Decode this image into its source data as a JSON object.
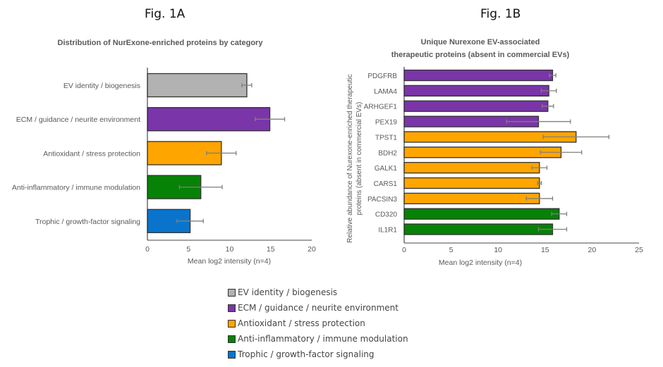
{
  "figures": {
    "fig_a_label": "Fig. 1A",
    "fig_b_label": "Fig. 1B"
  },
  "legend": [
    {
      "label": "EV identity / biogenesis",
      "color": "#b2b2b2"
    },
    {
      "label": "ECM / guidance / neurite environment",
      "color": "#7a35a8"
    },
    {
      "label": "Antioxidant / stress protection",
      "color": "#ffa500"
    },
    {
      "label": "Anti-inflammatory / immune modulation",
      "color": "#068206"
    },
    {
      "label": "Trophic / growth-factor signaling",
      "color": "#0a74cc"
    }
  ],
  "chart_data": [
    {
      "type": "bar",
      "orientation": "horizontal",
      "title": "Distribution of NurExone-enriched proteins by category",
      "xlabel": "Mean log2 intensity (n=4)",
      "ylabel": "",
      "xlim": [
        0,
        20
      ],
      "xticks": [
        0,
        5,
        10,
        15,
        20
      ],
      "grid": false,
      "categories": [
        "EV identity / biogenesis",
        "ECM / guidance / neurite environment",
        "Antioxidant / stress protection",
        "Anti-inflammatory / immune modulation",
        "Trophic / growth-factor signaling"
      ],
      "values": [
        12.1,
        14.9,
        9.0,
        6.5,
        5.2
      ],
      "errors": [
        0.6,
        1.8,
        1.8,
        2.6,
        1.6
      ],
      "colors": [
        "#b2b2b2",
        "#7a35a8",
        "#ffa500",
        "#068206",
        "#0a74cc"
      ]
    },
    {
      "type": "bar",
      "orientation": "horizontal",
      "title_lines": [
        "Unique Nurexone EV-associated",
        "therapeutic proteins (absent in commercial EVs)"
      ],
      "xlabel": "Mean log2 intensity (n=4)",
      "ylabel_lines": [
        "Relative abundance of Nurexone-enriched therapeutic",
        "proteins (absent in commercial EVs)"
      ],
      "xlim": [
        0,
        25
      ],
      "xticks": [
        0,
        5,
        10,
        15,
        20,
        25
      ],
      "grid": false,
      "categories": [
        "PDGFRB",
        "LAMA4",
        "ARHGEF1",
        "PEX19",
        "TPST1",
        "BDH2",
        "GALK1",
        "CARS1",
        "PACSIN3",
        "CD320",
        "IL1R1"
      ],
      "values": [
        15.8,
        15.4,
        15.3,
        14.3,
        18.3,
        16.7,
        14.4,
        14.4,
        14.4,
        16.5,
        15.8
      ],
      "errors": [
        0.35,
        0.8,
        0.6,
        3.4,
        3.5,
        2.2,
        0.8,
        0.2,
        1.4,
        0.8,
        1.5
      ],
      "colors": [
        "#7a35a8",
        "#7a35a8",
        "#7a35a8",
        "#7a35a8",
        "#ffa500",
        "#ffa500",
        "#ffa500",
        "#ffa500",
        "#ffa500",
        "#068206",
        "#068206"
      ]
    }
  ]
}
